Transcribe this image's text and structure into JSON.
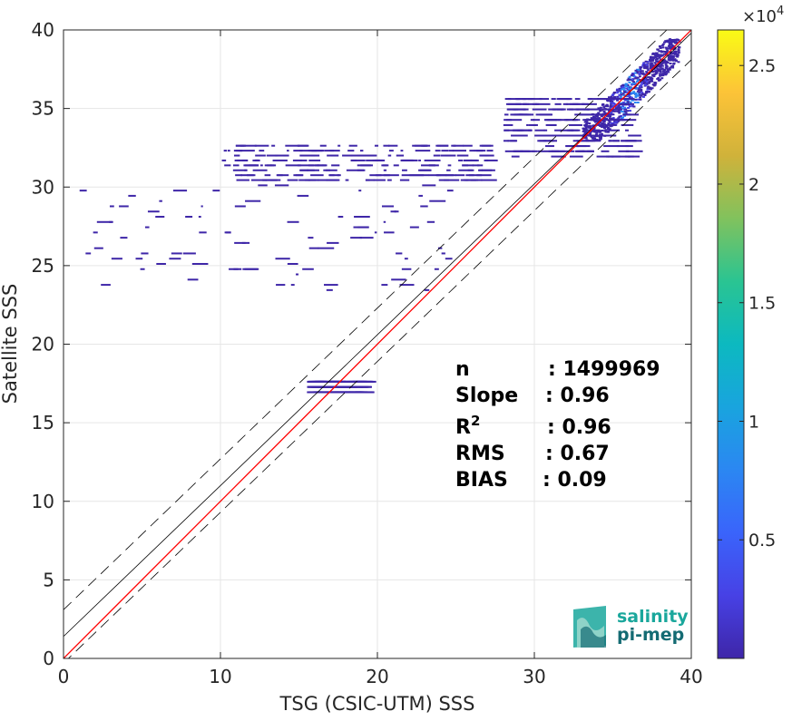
{
  "chart_data": {
    "type": "heatmap",
    "title": "",
    "xlabel": "TSG (CSIC-UTM) SSS",
    "ylabel": "Satellite SSS",
    "xlim": [
      0,
      40
    ],
    "ylim": [
      0,
      40
    ],
    "xticks": [
      0,
      10,
      20,
      30,
      40
    ],
    "yticks": [
      0,
      5,
      10,
      15,
      20,
      25,
      30,
      35,
      40
    ],
    "grid": true,
    "colorbar": {
      "colormap": "parula",
      "range": [
        0,
        26500
      ],
      "ticks": [
        5000,
        10000,
        15000,
        20000,
        25000
      ],
      "tick_labels": [
        "0.5",
        "1",
        "1.5",
        "2",
        "2.5"
      ],
      "exponent_base": "×10",
      "exponent_power": "4"
    },
    "reference_lines": {
      "one_to_one": {
        "slope": 1,
        "intercept": 0,
        "color": "#ff0000"
      },
      "fit": {
        "slope": 0.96,
        "intercept": 1.4,
        "color": "#000000"
      },
      "fit_bands": {
        "offset": 1.7,
        "style": "dashed",
        "color": "#000000"
      }
    },
    "density_clusters": [
      {
        "x": [
          33,
          39.2
        ],
        "y": [
          33,
          39.5
        ],
        "level": "high"
      },
      {
        "x": [
          28,
          36
        ],
        "y": [
          32,
          36
        ],
        "level": "low"
      },
      {
        "x": [
          10,
          27
        ],
        "y": [
          30.5,
          33
        ],
        "level": "low"
      },
      {
        "x": [
          1,
          25
        ],
        "y": [
          23.5,
          30.5
        ],
        "level": "sparse"
      },
      {
        "x": [
          15.5,
          19
        ],
        "y": [
          17,
          18
        ],
        "level": "low"
      }
    ],
    "stats": [
      {
        "name": "n",
        "sep": ":",
        "value": "1499969"
      },
      {
        "name": "Slope",
        "sep": ":",
        "value": "0.96"
      },
      {
        "name": "R",
        "sup": "2",
        "sep": ":",
        "value": "0.96"
      },
      {
        "name": "RMS",
        "sep": ":",
        "value": "0.67"
      },
      {
        "name": "BIAS",
        "sep": ":",
        "value": "0.09"
      }
    ]
  },
  "logo": {
    "line1": "salinity",
    "line2": "pi-mep"
  },
  "colors": {
    "one_to_one": "#ff0000",
    "fit": "#000000",
    "logo_primary": "#1aa79c",
    "logo_secondary": "#146b73",
    "low_density": "#3e26a8"
  }
}
